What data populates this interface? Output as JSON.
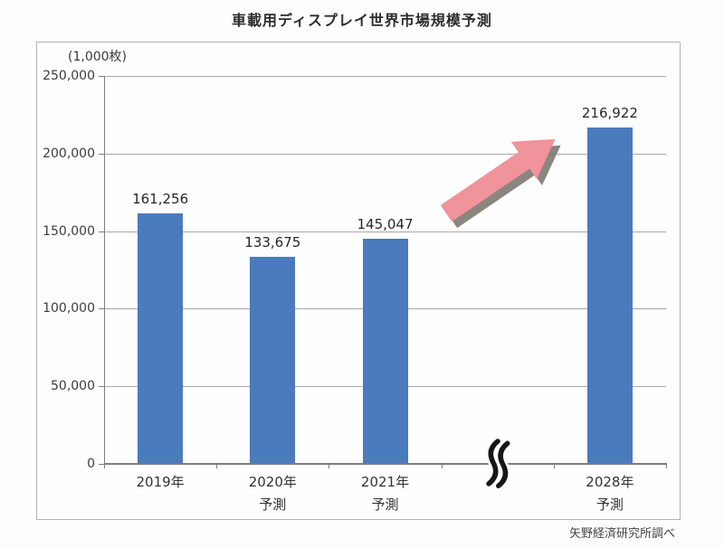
{
  "page": {
    "title": "車載用ディスプレイ世界市場規模予測",
    "source": "矢野経済研究所調べ"
  },
  "chart_data": {
    "type": "bar",
    "title": "車載用ディスプレイ世界市場規模予測",
    "unit_label": "(1,000枚)",
    "xlabel": "",
    "ylabel": "",
    "ylim": [
      0,
      250000
    ],
    "y_ticks": [
      0,
      50000,
      100000,
      150000,
      200000,
      250000
    ],
    "y_tick_labels": [
      "0",
      "50,000",
      "100,000",
      "150,000",
      "200,000",
      "250,000"
    ],
    "grid": true,
    "legend": "none",
    "bar_color": "#4a7bbd",
    "arrow_color": "#f0939b",
    "arrow_shadow_color": "#77706a",
    "source": "矢野経済研究所調べ",
    "slots": [
      {
        "label": "2019年",
        "sublabel": "",
        "value": 161256,
        "value_label": "161,256",
        "axis_break": false
      },
      {
        "label": "2020年",
        "sublabel": "予測",
        "value": 133675,
        "value_label": "133,675",
        "axis_break": false
      },
      {
        "label": "2021年",
        "sublabel": "予測",
        "value": 145047,
        "value_label": "145,047",
        "axis_break": false
      },
      {
        "label": "",
        "sublabel": "",
        "value": null,
        "value_label": "",
        "axis_break": true
      },
      {
        "label": "2028年",
        "sublabel": "予測",
        "value": 216922,
        "value_label": "216,922",
        "axis_break": false
      }
    ],
    "annotations": [
      {
        "type": "arrow",
        "meaning": "growth-trend toward 2028"
      },
      {
        "type": "axis-break",
        "meaning": "time-scale break between 2021 and 2028"
      }
    ]
  }
}
